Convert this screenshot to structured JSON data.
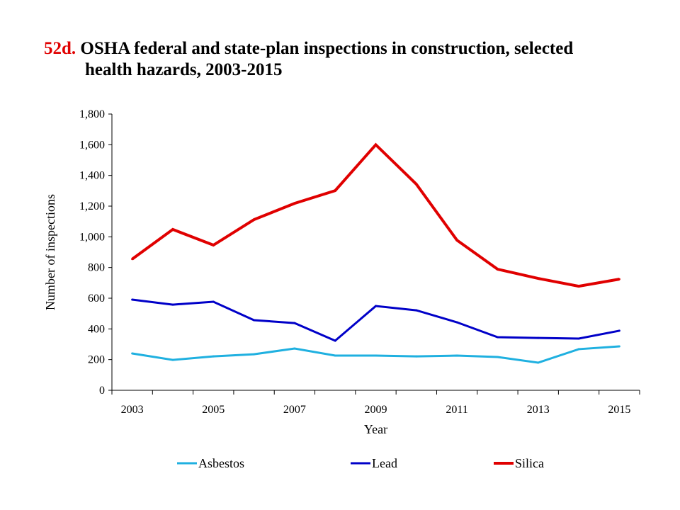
{
  "title": {
    "number": "52d.",
    "line1": "OSHA federal and state-plan inspections in construction, selected",
    "line2": "health hazards, 2003-2015"
  },
  "chart_data": {
    "type": "line",
    "title": "52d. OSHA federal and state-plan inspections in construction, selected health hazards, 2003-2015",
    "xlabel": "Year",
    "ylabel": "Number of inspections",
    "x": [
      2003,
      2004,
      2005,
      2006,
      2007,
      2008,
      2009,
      2010,
      2011,
      2012,
      2013,
      2014,
      2015
    ],
    "x_tick_labels": [
      "2003",
      "2005",
      "2007",
      "2009",
      "2011",
      "2013",
      "2015"
    ],
    "y_tick_labels": [
      "0",
      "200",
      "400",
      "600",
      "800",
      "1,000",
      "1,200",
      "1,400",
      "1,600",
      "1,800"
    ],
    "ylim": [
      0,
      1800
    ],
    "grid": false,
    "legend_position": "bottom",
    "series": [
      {
        "name": "Asbestos",
        "color": "#1fb0e0",
        "values": [
          240,
          198,
          221,
          235,
          272,
          226,
          226,
          221,
          226,
          217,
          180,
          268,
          286
        ]
      },
      {
        "name": "Lead",
        "color": "#0000c8",
        "values": [
          591,
          558,
          577,
          457,
          438,
          323,
          549,
          521,
          443,
          346,
          341,
          337,
          388
        ]
      },
      {
        "name": "Silica",
        "color": "#e00000",
        "values": [
          855,
          1048,
          946,
          1112,
          1218,
          1301,
          1600,
          1343,
          978,
          789,
          729,
          678,
          724
        ]
      }
    ]
  }
}
